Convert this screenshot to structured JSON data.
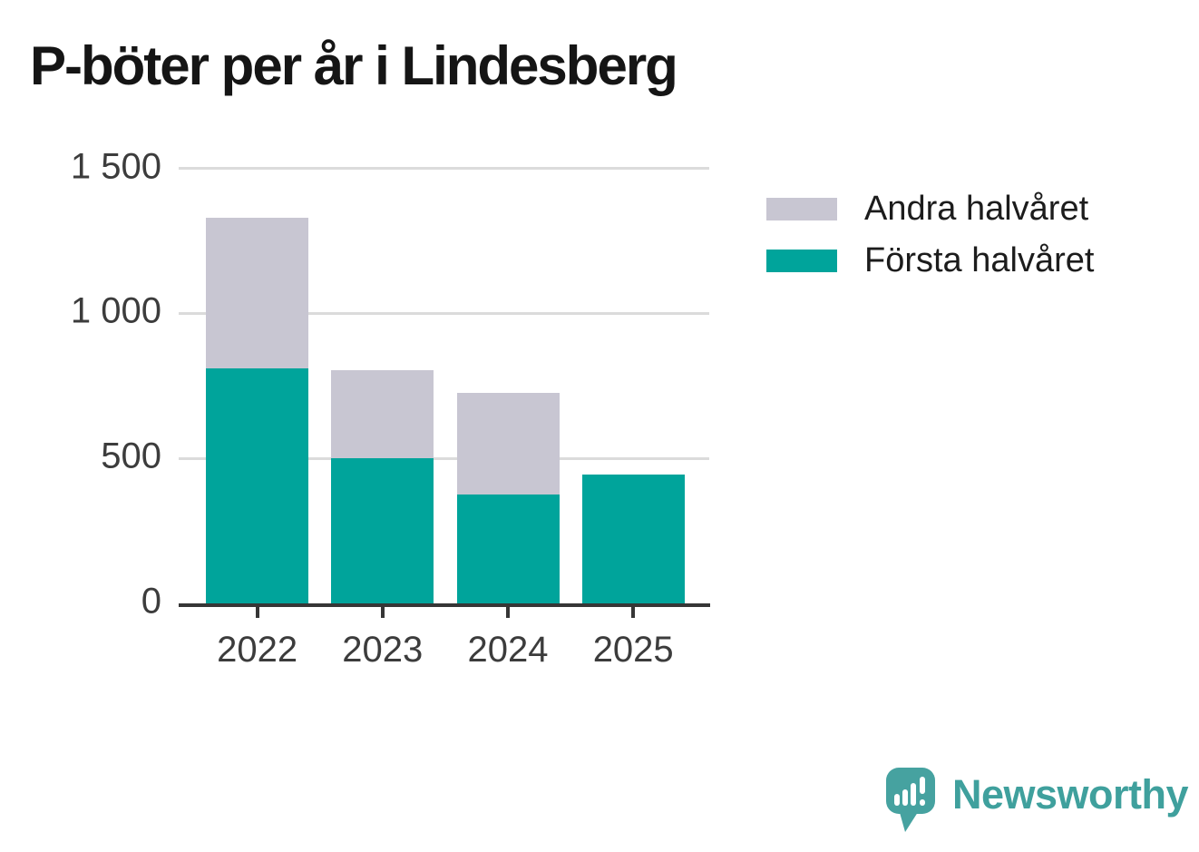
{
  "title": "P-böter per år i Lindesberg",
  "chart_data": {
    "type": "bar",
    "stacked": true,
    "title": "P-böter per år i Lindesberg",
    "categories": [
      "2022",
      "2023",
      "2024",
      "2025"
    ],
    "series": [
      {
        "name": "Första halvåret",
        "color": "#00a49b",
        "values": [
          810,
          500,
          375,
          445
        ]
      },
      {
        "name": "Andra halvåret",
        "color": "#c8c6d2",
        "values": [
          520,
          305,
          350,
          0
        ]
      }
    ],
    "xlabel": "",
    "ylabel": "",
    "ylim": [
      0,
      1500
    ],
    "yticks": {
      "values": [
        0,
        500,
        1000,
        1500
      ],
      "labels": [
        "0",
        "500",
        "1 000",
        "1 500"
      ]
    },
    "grid": "horizontal",
    "legend_position": "right-top"
  },
  "legend": {
    "items": [
      {
        "label": "Andra halvåret",
        "color": "#c8c6d2"
      },
      {
        "label": "Första halvåret",
        "color": "#00a49b"
      }
    ]
  },
  "logo": {
    "text": "Newsworthy",
    "text_color": "#3fa09d",
    "mark_color": "#46a2a0",
    "mark": "speech-bubble-chart-icon"
  }
}
